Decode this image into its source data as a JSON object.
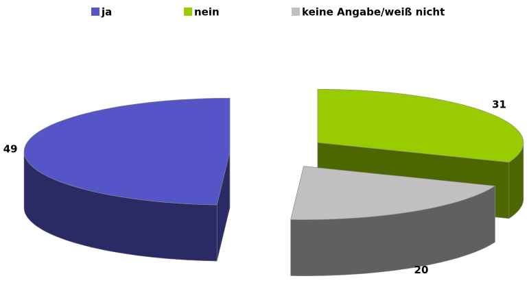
{
  "chart_data": {
    "type": "pie3d",
    "categories": [
      "ja",
      "nein",
      "keine Angabe/weiß nicht"
    ],
    "values": [
      49,
      31,
      20
    ],
    "colors": [
      "#5555c8",
      "#99cc00",
      "#c0c0c0"
    ],
    "legend": "top"
  }
}
